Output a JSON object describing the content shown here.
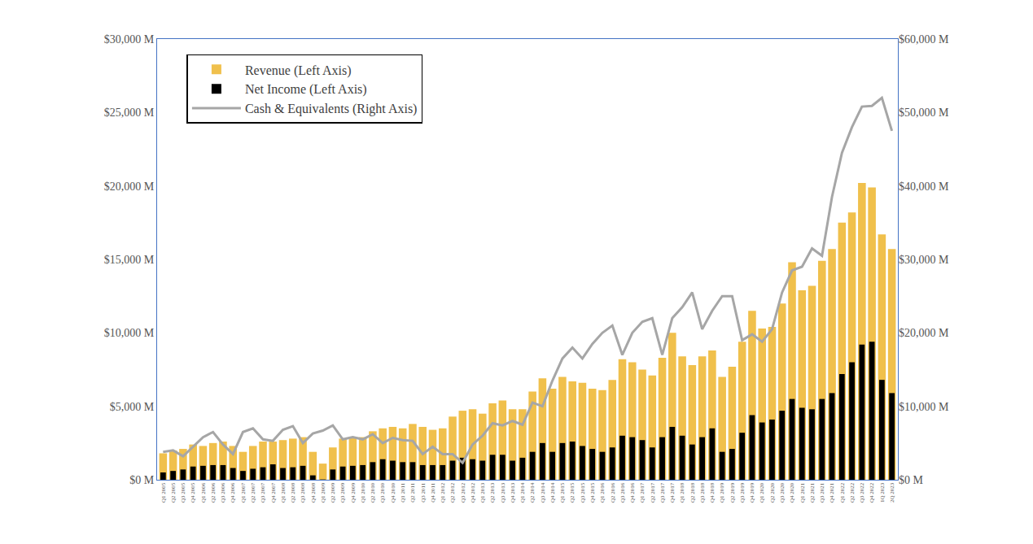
{
  "chart_data": {
    "type": "bar",
    "categories": [
      "Q1 2005",
      "Q2 2005",
      "Q3 2005",
      "Q4 2005",
      "Q1 2006",
      "Q2 2006",
      "Q3 2006",
      "Q4 2006",
      "Q1 2007",
      "Q2 2007",
      "Q3 2007",
      "Q4 2007",
      "Q1 2008",
      "Q2 2008",
      "Q3 2008",
      "Q4 2008",
      "Q1 2009",
      "Q2 2009",
      "Q3 2009",
      "Q4 2009",
      "Q1 2010",
      "Q2 2010",
      "Q3 2010",
      "Q4 2010",
      "Q1 2011",
      "Q2 2011",
      "Q3 2011",
      "Q4 2011",
      "Q1 2012",
      "Q2 2012",
      "Q3 2012",
      "Q4 2012",
      "Q1 2013",
      "Q2 2013",
      "Q3 2013",
      "Q4 2013",
      "Q1 2014",
      "Q2 2014",
      "Q3 2014",
      "Q4 2014",
      "Q1 2015",
      "Q2 2015",
      "Q3 2015",
      "Q4 2015",
      "Q1 2016",
      "Q2 2016",
      "Q3 2016",
      "Q4 2016",
      "Q1 2017",
      "Q2 2017",
      "Q3 2017",
      "Q4 2017",
      "Q1 2018",
      "Q2 2018",
      "Q3 2018",
      "Q4 2018",
      "Q1 2019",
      "Q2 2019",
      "Q3 2019",
      "Q4 2019",
      "Q1 2020",
      "Q2 2020",
      "Q3 2020",
      "Q4 2020",
      "Q1 2021",
      "Q2 2021",
      "Q3 2021",
      "Q4 2021",
      "Q1 2022",
      "Q2 2022",
      "Q3 2022",
      "Q4 2022",
      "1Q 2023",
      "2Q 2023"
    ],
    "series": [
      {
        "name": "Revenue (Left Axis)",
        "type": "bar",
        "color": "#F0C04C",
        "values": [
          1800,
          2000,
          2100,
          2400,
          2300,
          2500,
          2600,
          2300,
          1900,
          2300,
          2600,
          2600,
          2700,
          2800,
          2900,
          1900,
          1100,
          2200,
          2800,
          2900,
          2900,
          3300,
          3500,
          3600,
          3500,
          3800,
          3600,
          3400,
          3500,
          4300,
          4700,
          4800,
          4500,
          5200,
          5400,
          4800,
          4800,
          6000,
          6900,
          6200,
          7000,
          6700,
          6600,
          6200,
          6100,
          6800,
          8200,
          8000,
          7500,
          7100,
          8300,
          10000,
          8400,
          7800,
          8400,
          8800,
          7000,
          7700,
          9400,
          11500,
          10300,
          10400,
          12000,
          14800,
          12900,
          13200,
          14900,
          15700,
          17500,
          18200,
          20200,
          19900,
          16700,
          15700
        ]
      },
      {
        "name": "Net Income (Left Axis)",
        "type": "bar",
        "color": "#000000",
        "values": [
          500,
          600,
          700,
          900,
          950,
          1000,
          1000,
          800,
          600,
          750,
          850,
          1050,
          800,
          850,
          950,
          300,
          20,
          700,
          900,
          950,
          1000,
          1200,
          1400,
          1300,
          1200,
          1200,
          1000,
          1000,
          1000,
          1300,
          1500,
          1400,
          1300,
          1700,
          1700,
          1300,
          1500,
          1900,
          2500,
          1900,
          2500,
          2600,
          2300,
          2100,
          1900,
          2200,
          3000,
          2900,
          2700,
          2200,
          2900,
          3600,
          3000,
          2400,
          2900,
          3500,
          1900,
          2100,
          3200,
          4400,
          3900,
          4100,
          4700,
          5500,
          4900,
          4800,
          5500,
          5900,
          7200,
          8000,
          9200,
          9400,
          6800,
          5900
        ]
      },
      {
        "name": "Cash & Equivalents (Right Axis)",
        "type": "line",
        "axis": "y2",
        "color": "#A6A6A6",
        "values": [
          3800,
          4000,
          3200,
          4500,
          5800,
          6500,
          4800,
          3500,
          6500,
          7000,
          5500,
          5300,
          6800,
          7300,
          5000,
          6300,
          6700,
          7400,
          5500,
          5800,
          5500,
          6200,
          5000,
          5700,
          5400,
          5300,
          3500,
          4500,
          3500,
          3500,
          2300,
          4800,
          6000,
          7700,
          7400,
          8000,
          7500,
          10500,
          10000,
          13500,
          16500,
          18000,
          16500,
          18500,
          20000,
          21000,
          17000,
          20000,
          21500,
          22000,
          17000,
          22000,
          23500,
          25500,
          20500,
          23000,
          25000,
          25000,
          19000,
          19800,
          18800,
          20500,
          25500,
          28500,
          29000,
          31500,
          30500,
          38500,
          44500,
          48000,
          50800,
          50900,
          52000,
          47500
        ]
      }
    ],
    "ylim": [
      0,
      30000
    ],
    "yticks": [
      {
        "value": 0,
        "label": "$0 M"
      },
      {
        "value": 5000,
        "label": "$5,000 M"
      },
      {
        "value": 10000,
        "label": "$10,000 M"
      },
      {
        "value": 15000,
        "label": "$15,000 M"
      },
      {
        "value": 20000,
        "label": "$20,000 M"
      },
      {
        "value": 25000,
        "label": "$25,000 M"
      },
      {
        "value": 30000,
        "label": "$30,000 M"
      }
    ],
    "y2lim": [
      0,
      60000
    ],
    "y2ticks": [
      {
        "value": 0,
        "label": "$0 M"
      },
      {
        "value": 10000,
        "label": "$10,000 M"
      },
      {
        "value": 20000,
        "label": "$20,000 M"
      },
      {
        "value": 30000,
        "label": "$30,000 M"
      },
      {
        "value": 40000,
        "label": "$40,000 M"
      },
      {
        "value": 50000,
        "label": "$50,000 M"
      },
      {
        "value": 60000,
        "label": "$60,000 M"
      }
    ],
    "grid": false,
    "legend": "top-left"
  }
}
